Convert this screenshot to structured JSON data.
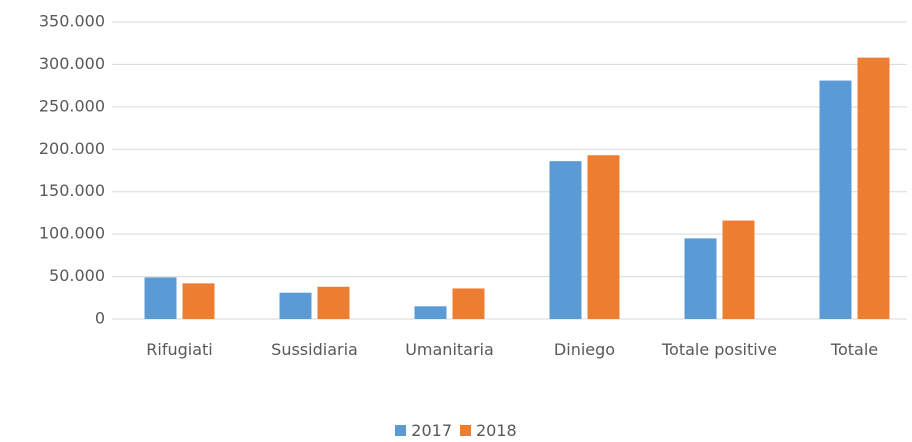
{
  "chart_data": {
    "type": "bar",
    "categories": [
      "Rifugiati",
      "Sussidiaria",
      "Umanitaria",
      "Diniego",
      "Totale positive",
      "Totale"
    ],
    "series": [
      {
        "name": "2017",
        "color": "#5b9bd5",
        "values": [
          49000,
          31000,
          15000,
          186000,
          95000,
          281000
        ]
      },
      {
        "name": "2018",
        "color": "#ed7d31",
        "values": [
          42000,
          38000,
          36000,
          193000,
          116000,
          308000
        ]
      }
    ],
    "ylim": [
      0,
      350000
    ],
    "yticks": [
      0,
      {
        "value": 50000,
        "label": "50.000"
      },
      {
        "value": 100000,
        "label": "100.000"
      },
      {
        "value": 150000,
        "label": "150.000"
      },
      {
        "value": 200000,
        "label": "200.000"
      },
      {
        "value": 250000,
        "label": "250.000"
      },
      {
        "value": 300000,
        "label": "300.000"
      },
      {
        "value": 350000,
        "label": "350.000"
      }
    ],
    "grid": true,
    "legend": "bottom"
  }
}
